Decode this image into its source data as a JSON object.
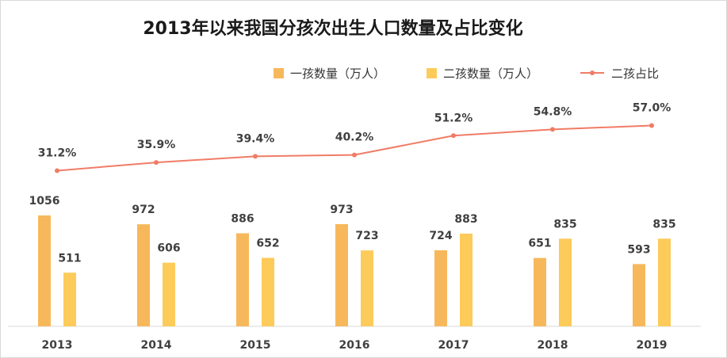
{
  "chart_data": {
    "type": "bar",
    "title": "2013年以来我国分孩次出生人口数量及占比变化",
    "categories": [
      "2013",
      "2014",
      "2015",
      "2016",
      "2017",
      "2018",
      "2019"
    ],
    "series": [
      {
        "name": "一孩数量（万人）",
        "type": "bar",
        "color": "#F7B85C",
        "values": [
          1056,
          972,
          886,
          973,
          724,
          651,
          593
        ]
      },
      {
        "name": "二孩数量（万人）",
        "type": "bar",
        "color": "#FDCB5A",
        "values": [
          511,
          606,
          652,
          723,
          883,
          835,
          835
        ]
      },
      {
        "name": "二孩占比",
        "type": "line",
        "color": "#F07C66",
        "values": [
          31.2,
          35.9,
          39.4,
          40.2,
          51.2,
          54.8,
          57.0
        ],
        "labels": [
          "31.2%",
          "35.9%",
          "39.4%",
          "40.2%",
          "51.2%",
          "54.8%",
          "57.0%"
        ]
      }
    ],
    "legend": "top-right",
    "grid": false
  }
}
